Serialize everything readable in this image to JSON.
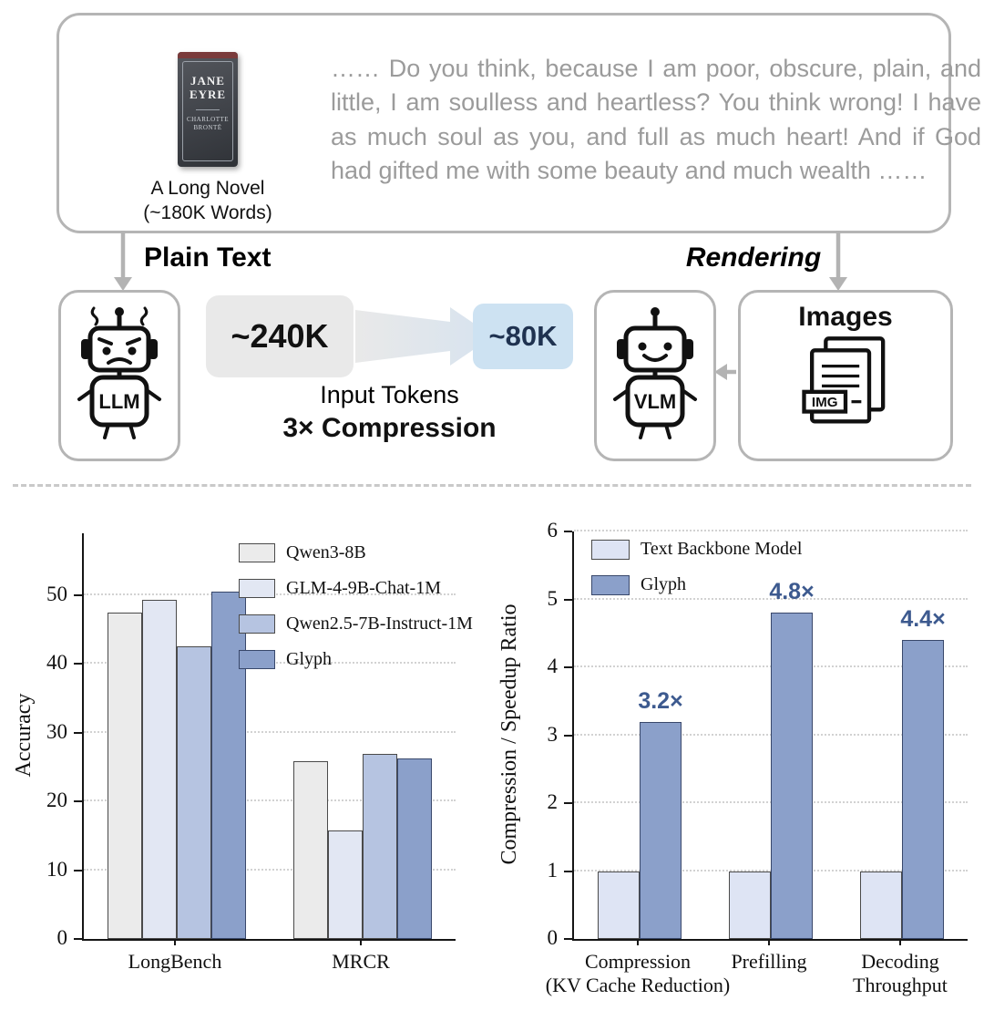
{
  "figure": {
    "novel": {
      "book_title_line1": "JANE",
      "book_title_line2": "EYRE",
      "book_author": "CHARLOTTE BRONTË",
      "caption_line1": "A Long Novel",
      "caption_line2": "(~180K Words)",
      "quote": "…… Do you think, because I am poor, obscure, plain, and little, I am soulless and heartless? You think wrong! I have as much soul as you, and full as much heart! And if God had gifted me with some beauty and much wealth ……"
    },
    "flow": {
      "plain_text_label": "Plain Text",
      "rendering_label": "Rendering",
      "llm_label": "LLM",
      "vlm_label": "VLM",
      "tokens_before": "~240K",
      "tokens_after": "~80K",
      "input_tokens_label": "Input Tokens",
      "compression_label": "3× Compression",
      "images_label": "Images",
      "img_badge": "IMG"
    },
    "colors": {
      "tokens_before_bg": "#e9e9e9",
      "tokens_after_bg": "#cde2f2",
      "tokens_after_text": "#1f3250",
      "arrow_gray": "#b3b3b3",
      "glyph_bar": "#8ba0ca",
      "value_label": "#3d5a8f"
    }
  },
  "chart_data": [
    {
      "type": "bar",
      "title": "",
      "xlabel": "",
      "ylabel": "Accuracy",
      "categories": [
        "LongBench",
        "MRCR"
      ],
      "series": [
        {
          "name": "Qwen3-8B",
          "color": "#ebebeb",
          "edge": "#4a4a4a",
          "values": [
            47.5,
            25.8
          ]
        },
        {
          "name": "GLM-4-9B-Chat-1M",
          "color": "#e2e7f3",
          "edge": "#4a4a4a",
          "values": [
            49.3,
            15.8
          ]
        },
        {
          "name": "Qwen2.5-7B-Instruct-1M",
          "color": "#b6c4e1",
          "edge": "#4a4a4a",
          "values": [
            42.5,
            26.9
          ]
        },
        {
          "name": "Glyph",
          "color": "#8ba0ca",
          "edge": "#39486b",
          "values": [
            50.5,
            26.3
          ]
        }
      ],
      "yticks": [
        0,
        10,
        20,
        30,
        40,
        50
      ],
      "ylim": [
        0,
        59
      ],
      "grid": true,
      "legend_position": "upper right"
    },
    {
      "type": "bar",
      "title": "",
      "xlabel": "",
      "ylabel": "Compression / Speedup Ratio",
      "categories": [
        "Compression\n(KV Cache Reduction)",
        "Prefilling",
        "Decoding\nThroughput"
      ],
      "series": [
        {
          "name": "Text Backbone Model",
          "color": "#dee4f4",
          "edge": "#4a4a4a",
          "values": [
            1.0,
            1.0,
            1.0
          ]
        },
        {
          "name": "Glyph",
          "color": "#8ba0ca",
          "edge": "#39486b",
          "values": [
            3.2,
            4.8,
            4.4
          ],
          "value_labels": [
            "3.2×",
            "4.8×",
            "4.4×"
          ],
          "label_color": "#3d5a8f"
        }
      ],
      "yticks": [
        0,
        1,
        2,
        3,
        4,
        5,
        6
      ],
      "ylim": [
        0,
        6
      ],
      "grid": true,
      "legend_position": "upper left"
    }
  ]
}
